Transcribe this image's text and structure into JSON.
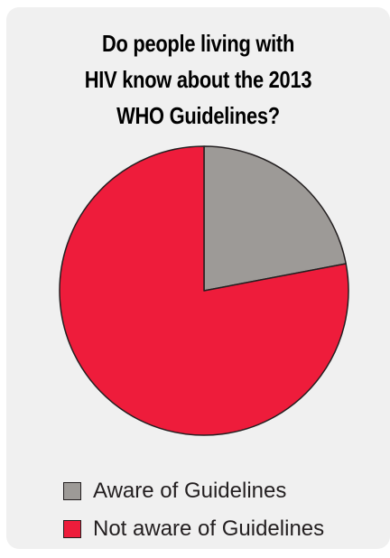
{
  "chart_data": {
    "type": "pie",
    "title_lines": [
      "Do people living with",
      "HIV know about the 2013",
      "WHO Guidelines?"
    ],
    "slices": [
      {
        "label": "Aware of Guidelines",
        "value": 22,
        "color": "#9d9a97"
      },
      {
        "label": "Not aware of Guidelines",
        "value": 78,
        "color": "#ee1c3b"
      }
    ],
    "start": "12 o'clock",
    "direction": "clockwise",
    "legend_position": "bottom-left"
  },
  "colors": {
    "card_background": "#f0f0f0",
    "outline": "#231f20"
  }
}
